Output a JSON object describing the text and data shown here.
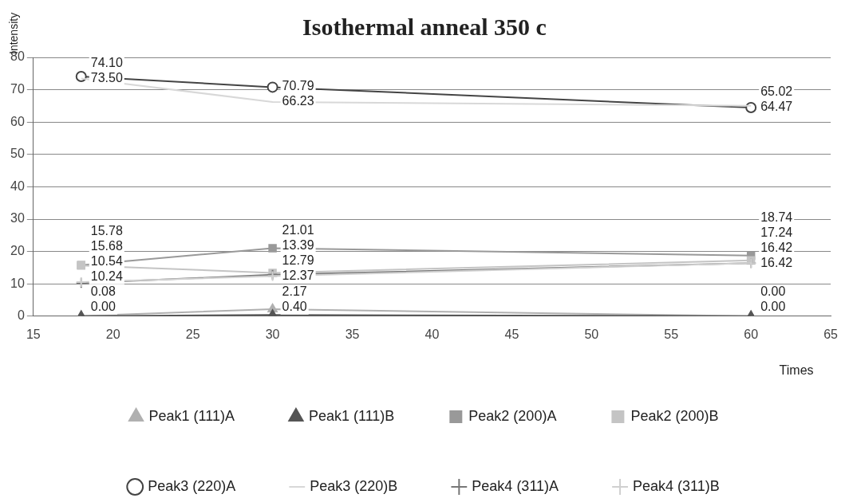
{
  "chart_data": {
    "type": "line",
    "title": "Isothermal anneal 350 c",
    "xlabel": "Times",
    "ylabel": "Intensity",
    "x": [
      18,
      30,
      60
    ],
    "xlim": [
      15,
      65
    ],
    "xticks": [
      15,
      20,
      25,
      30,
      35,
      40,
      45,
      50,
      55,
      60,
      65
    ],
    "ylim": [
      0,
      80
    ],
    "yticks": [
      0,
      10,
      20,
      30,
      40,
      50,
      60,
      70,
      80
    ],
    "grid": "y",
    "legend": "bottom",
    "series": [
      {
        "name": "Peak1 (111)A",
        "color": "#b0b0b0",
        "marker": "triangle",
        "values": [
          0.08,
          2.17,
          0.0
        ],
        "value_labels": [
          "0.08",
          "2.17",
          "0.00"
        ]
      },
      {
        "name": "Peak1 (111)B",
        "color": "#555555",
        "marker": "triangle",
        "values": [
          0.0,
          0.4,
          0.0
        ],
        "value_labels": [
          "0.00",
          "0.40",
          "0.00"
        ]
      },
      {
        "name": "Peak2 (200)A",
        "color": "#999999",
        "marker": "square",
        "values": [
          15.78,
          21.01,
          18.74
        ],
        "value_labels": [
          "15.78",
          "21.01",
          "18.74"
        ]
      },
      {
        "name": "Peak2 (200)B",
        "color": "#c4c4c4",
        "marker": "square",
        "values": [
          15.68,
          13.39,
          17.24
        ],
        "value_labels": [
          "15.68",
          "13.39",
          "17.24"
        ]
      },
      {
        "name": "Peak3 (220)A",
        "color": "#444444",
        "marker": "circle",
        "values": [
          74.1,
          70.79,
          64.47
        ],
        "value_labels": [
          "74.10",
          "70.79",
          "64.47"
        ]
      },
      {
        "name": "Peak3 (220)B",
        "color": "#d8d8d8",
        "marker": "none",
        "values": [
          73.5,
          66.23,
          65.02
        ],
        "value_labels": [
          "73.50",
          "66.23",
          "65.02"
        ]
      },
      {
        "name": "Peak4 (311)A",
        "color": "#777777",
        "marker": "cross",
        "values": [
          10.24,
          12.79,
          16.42
        ],
        "value_labels": [
          "10.24",
          "12.79",
          "16.42"
        ]
      },
      {
        "name": "Peak4 (311)B",
        "color": "#d0d0d0",
        "marker": "cross",
        "values": [
          10.54,
          12.37,
          16.42
        ],
        "value_labels": [
          "10.54",
          "12.37",
          "16.42"
        ]
      }
    ]
  }
}
